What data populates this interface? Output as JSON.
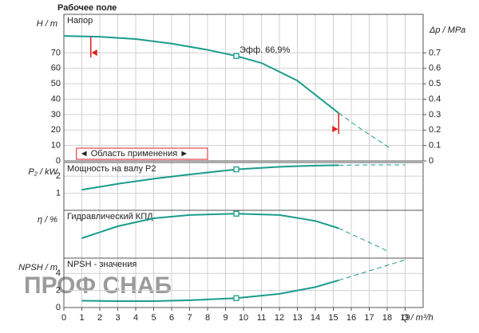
{
  "chart_data": [
    {
      "type": "line",
      "title": "Рабочее поле",
      "ylabel": "H / m",
      "label": "Напор",
      "annotation": "Эфф. 66,9%",
      "application_range": "◄ Область применения ►",
      "limits": [
        1.5,
        15.3
      ],
      "ylim": [
        0,
        95
      ],
      "yticks": [
        0,
        10,
        20,
        30,
        40,
        50,
        60,
        70
      ],
      "y2label": "Δp / MPa",
      "y2lim": [
        0,
        0.95
      ],
      "y2ticks": [
        0,
        0.1,
        0.2,
        0.3,
        0.4,
        0.5,
        0.6,
        0.7
      ],
      "operating_point": {
        "x": 9.6,
        "y": 68
      },
      "series": [
        {
          "color": "#1a9c8c",
          "style": "solid",
          "x": [
            0,
            2,
            4,
            6,
            8,
            9.6,
            11,
            13,
            15.3
          ],
          "values": [
            81,
            80.5,
            79,
            76,
            72,
            68,
            63.5,
            52,
            31
          ]
        },
        {
          "color": "#1a9c8c",
          "style": "dashed",
          "x": [
            15.3,
            16.5,
            18.2
          ],
          "values": [
            31,
            21,
            8
          ]
        }
      ]
    },
    {
      "type": "line",
      "ylabel": "P₂ / kW",
      "label": "Мощность на валу P2",
      "ylim": [
        0,
        2.8
      ],
      "yticks": [
        1,
        2
      ],
      "operating_point": {
        "x": 9.6,
        "y": 2.4
      },
      "series": [
        {
          "color": "#1a9c8c",
          "style": "solid",
          "x": [
            1,
            3,
            5,
            7,
            9.6,
            12,
            14,
            15.3
          ],
          "values": [
            1.2,
            1.55,
            1.85,
            2.1,
            2.4,
            2.55,
            2.62,
            2.64
          ]
        },
        {
          "color": "#1a9c8c",
          "style": "dashed",
          "x": [
            15.3,
            17,
            19
          ],
          "values": [
            2.64,
            2.66,
            2.66
          ]
        }
      ]
    },
    {
      "type": "line",
      "ylabel": "η / %",
      "label": "Гидравлический КПД",
      "ylim": [
        0,
        72
      ],
      "yticks": [],
      "operating_point": {
        "x": 9.6,
        "y": 66.9
      },
      "series": [
        {
          "color": "#1a9c8c",
          "style": "solid",
          "x": [
            1,
            3,
            5,
            7,
            9.6,
            12,
            14,
            15.3
          ],
          "values": [
            30,
            48,
            60,
            65,
            66.9,
            65,
            56,
            45
          ]
        },
        {
          "color": "#1a9c8c",
          "style": "dashed",
          "x": [
            15.3,
            16.5,
            18
          ],
          "values": [
            45,
            30,
            11
          ]
        }
      ]
    },
    {
      "type": "line",
      "ylabel": "NPSH / m",
      "label": "NPSH - значения",
      "ylim": [
        0,
        5.8
      ],
      "yticks": [
        0,
        2,
        4
      ],
      "operating_point": {
        "x": 9.6,
        "y": 1.1
      },
      "xlabel": "Q / m³/h",
      "xlim": [
        0,
        20
      ],
      "xticks": [
        0,
        1,
        2,
        3,
        4,
        5,
        6,
        7,
        8,
        9,
        10,
        11,
        12,
        13,
        14,
        15,
        16,
        17,
        18,
        19
      ],
      "watermark": "ПРОФ СНАБ",
      "series": [
        {
          "color": "#1a9c8c",
          "style": "solid",
          "x": [
            1,
            3,
            5,
            7,
            9.6,
            12,
            14,
            15.3
          ],
          "values": [
            0.8,
            0.75,
            0.75,
            0.85,
            1.1,
            1.6,
            2.4,
            3.2
          ]
        },
        {
          "color": "#1a9c8c",
          "style": "dashed",
          "x": [
            15.3,
            17,
            19
          ],
          "values": [
            3.2,
            4.3,
            5.6
          ]
        }
      ]
    }
  ]
}
